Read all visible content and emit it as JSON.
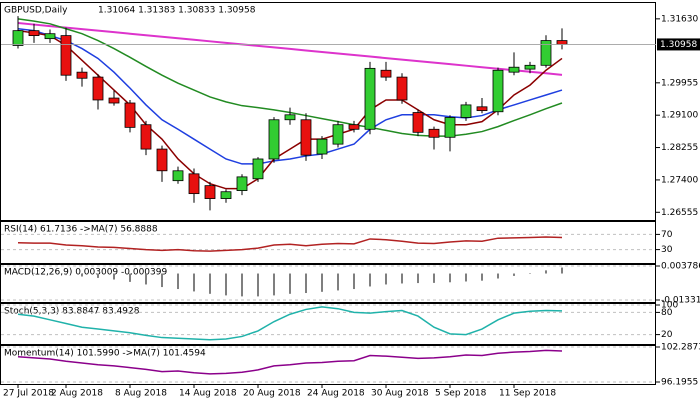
{
  "chart_data": [
    {
      "type": "candlestick",
      "title": "GBPUSD,Daily",
      "subtitle": "1.31064 1.31383 1.30833 1.30958",
      "categories": [
        "27 Jul 2018",
        null,
        null,
        "2 Aug 2018",
        null,
        null,
        null,
        "8 Aug 2018",
        null,
        null,
        null,
        "14 Aug 2018",
        null,
        null,
        null,
        "20 Aug 2018",
        null,
        null,
        null,
        "24 Aug 2018",
        null,
        null,
        null,
        "30 Aug 2018",
        null,
        null,
        null,
        "5 Sep 2018",
        null,
        null,
        null,
        "11 Sep 2018",
        null,
        null,
        null
      ],
      "open": [
        1.3093,
        1.3132,
        1.3111,
        1.3119,
        1.3023,
        1.301,
        1.2955,
        1.2942,
        1.2885,
        1.2821,
        1.2738,
        1.2756,
        1.2725,
        1.2691,
        1.2712,
        1.2743,
        1.2795,
        1.2898,
        1.2898,
        1.2808,
        1.2834,
        1.2885,
        1.2873,
        1.3028,
        1.301,
        1.2917,
        1.2873,
        1.2852,
        1.2904,
        1.2932,
        1.2919,
        1.3023,
        1.3031,
        1.3041,
        1.3106
      ],
      "high": [
        1.317,
        1.315,
        1.3135,
        1.314,
        1.3035,
        1.3018,
        1.2975,
        1.295,
        1.2895,
        1.283,
        1.2775,
        1.277,
        1.2735,
        1.2715,
        1.2755,
        1.28,
        1.2905,
        1.293,
        1.2915,
        1.2855,
        1.2895,
        1.2895,
        1.305,
        1.305,
        1.302,
        1.2925,
        1.288,
        1.291,
        1.2945,
        1.2955,
        1.3035,
        1.3075,
        1.305,
        1.312,
        1.3138
      ],
      "low": [
        1.3085,
        1.31,
        1.31,
        1.3,
        1.2985,
        1.2925,
        1.2935,
        1.2865,
        1.2805,
        1.2735,
        1.273,
        1.268,
        1.266,
        1.268,
        1.27,
        1.2735,
        1.2785,
        1.2885,
        1.279,
        1.2795,
        1.2825,
        1.2865,
        1.286,
        1.3,
        1.294,
        1.2855,
        1.282,
        1.2815,
        1.2895,
        1.2915,
        1.291,
        1.3015,
        1.302,
        1.3035,
        1.3083
      ],
      "close": [
        1.3132,
        1.3119,
        1.3124,
        1.3015,
        1.3007,
        1.295,
        1.2942,
        1.2878,
        1.2821,
        1.2764,
        1.2764,
        1.2704,
        1.2691,
        1.2709,
        1.2748,
        1.2795,
        1.2898,
        1.2911,
        1.2805,
        1.2847,
        1.2885,
        1.2873,
        1.3033,
        1.301,
        1.295,
        1.2865,
        1.2852,
        1.2904,
        1.2937,
        1.2922,
        1.3028,
        1.3036,
        1.3041,
        1.3106,
        1.3096
      ],
      "up_color": "#32cd32",
      "down_color": "#e8110f",
      "lines": [
        {
          "color": "#dd33cc",
          "values": [
            1.3152,
            1.3148,
            1.3144,
            1.314,
            1.3136,
            1.3132,
            1.3128,
            1.3124,
            1.312,
            1.3116,
            1.3112,
            1.3108,
            1.3104,
            1.31,
            1.3096,
            1.3092,
            1.3088,
            1.3084,
            1.308,
            1.3076,
            1.3072,
            1.3068,
            1.3064,
            1.306,
            1.3056,
            1.3052,
            1.3048,
            1.3044,
            1.304,
            1.3036,
            1.3032,
            1.3028,
            1.3024,
            1.302,
            1.3016
          ]
        },
        {
          "color": "#228b22",
          "values": [
            1.3163,
            1.3157,
            1.315,
            1.3137,
            1.3124,
            1.3106,
            1.3085,
            1.3062,
            1.3038,
            1.3015,
            1.2994,
            1.2976,
            1.2958,
            1.2945,
            1.2935,
            1.293,
            1.2924,
            1.2917,
            1.2909,
            1.2901,
            1.2893,
            1.2885,
            1.2878,
            1.287,
            1.2862,
            1.2857,
            1.2855,
            1.2855,
            1.286,
            1.2867,
            1.288,
            1.2896,
            1.2911,
            1.2927,
            1.2942
          ]
        },
        {
          "color": "#1f3fe0",
          "values": [
            1.3137,
            1.3132,
            1.3119,
            1.3106,
            1.3085,
            1.3059,
            1.3023,
            1.2981,
            1.2937,
            1.2898,
            1.2873,
            1.2847,
            1.2821,
            1.2795,
            1.2782,
            1.2782,
            1.279,
            1.2795,
            1.2803,
            1.2808,
            1.2821,
            1.2834,
            1.2873,
            1.2898,
            1.2911,
            1.2911,
            1.2911,
            1.2906,
            1.2903,
            1.2909,
            1.2924,
            1.2937,
            1.295,
            1.2963,
            1.2976
          ]
        },
        {
          "color": "#8b0000",
          "values": [
            1.3132,
            1.3126,
            1.3119,
            1.3093,
            1.3054,
            1.3015,
            1.2976,
            1.2937,
            1.2885,
            1.2847,
            1.2795,
            1.2756,
            1.273,
            1.2717,
            1.2717,
            1.2743,
            1.2795,
            1.2821,
            1.2847,
            1.2847,
            1.286,
            1.2873,
            1.2924,
            1.295,
            1.295,
            1.2924,
            1.2898,
            1.2885,
            1.2885,
            1.2893,
            1.2924,
            1.2963,
            1.2989,
            1.3028,
            1.3059
          ]
        }
      ],
      "last_price": {
        "value": 1.30958,
        "label": "1.30958"
      },
      "ylim": [
        1.264,
        1.3202
      ],
      "yticks": [
        {
          "value": 1.3163,
          "label": "1.31630"
        },
        {
          "value": 1.2995,
          "label": "1.29955"
        },
        {
          "value": 1.291,
          "label": "1.29100"
        },
        {
          "value": 1.2825,
          "label": "1.28255"
        },
        {
          "value": 1.274,
          "label": "1.27400"
        },
        {
          "value": 1.2655,
          "label": "1.26555"
        }
      ]
    },
    {
      "type": "line",
      "title": "RSI(14) 61.7136 ->MA(7) 56.8888",
      "color": "#b22222",
      "values": [
        48,
        47,
        47,
        42,
        40,
        37,
        36,
        33,
        30,
        28,
        30,
        27,
        26,
        28,
        30,
        34,
        42,
        44,
        40,
        44,
        46,
        45,
        58,
        56,
        52,
        47,
        46,
        50,
        53,
        52,
        60,
        61,
        62,
        63,
        62
      ],
      "ylim": [
        0,
        100
      ],
      "yticks": [
        70,
        30
      ]
    },
    {
      "type": "bar",
      "title": "MACD(12,26,9) 0.003009 -0.000399",
      "color": "#7f7f7f",
      "values": [
        0.0005,
        0.0003,
        0,
        -0.0008,
        -0.0015,
        -0.0022,
        -0.003,
        -0.0042,
        -0.0055,
        -0.0068,
        -0.0078,
        -0.009,
        -0.0102,
        -0.011,
        -0.0115,
        -0.0115,
        -0.011,
        -0.0102,
        -0.0098,
        -0.0092,
        -0.0085,
        -0.0078,
        -0.0065,
        -0.0055,
        -0.005,
        -0.0048,
        -0.0047,
        -0.0044,
        -0.004,
        -0.0036,
        -0.0025,
        -0.0012,
        0.0002,
        0.0016,
        0.003
      ],
      "ylim": [
        -0.013313,
        0.003786
      ],
      "yticks": [
        0.003786,
        -0.013313
      ]
    },
    {
      "type": "line",
      "title": "Stoch(5,3,3) 83.8847 83.4928",
      "color": "#20b2aa",
      "values": [
        75,
        70,
        60,
        50,
        40,
        35,
        30,
        25,
        18,
        12,
        10,
        8,
        6,
        8,
        15,
        30,
        55,
        75,
        88,
        95,
        90,
        80,
        78,
        82,
        85,
        70,
        40,
        22,
        20,
        35,
        60,
        78,
        83,
        85,
        84
      ],
      "ylim": [
        0,
        100
      ],
      "yticks": [
        100,
        80,
        20
      ]
    },
    {
      "type": "line",
      "title": "Momentum(14) 101.5990 ->MA(7) 101.4594",
      "color": "#8b008b",
      "values": [
        100.6,
        100.4,
        100.2,
        99.8,
        99.5,
        99.2,
        99.0,
        98.7,
        98.4,
        98.0,
        98.1,
        97.8,
        97.6,
        97.7,
        97.9,
        98.3,
        99.0,
        99.2,
        99.5,
        99.6,
        99.8,
        99.9,
        100.8,
        100.7,
        100.5,
        100.3,
        100.4,
        100.6,
        100.9,
        100.8,
        101.2,
        101.4,
        101.5,
        101.7,
        101.6
      ],
      "ylim": [
        96.1955,
        102.2873
      ],
      "yticks": [
        102.2873,
        96.1955
      ]
    }
  ]
}
